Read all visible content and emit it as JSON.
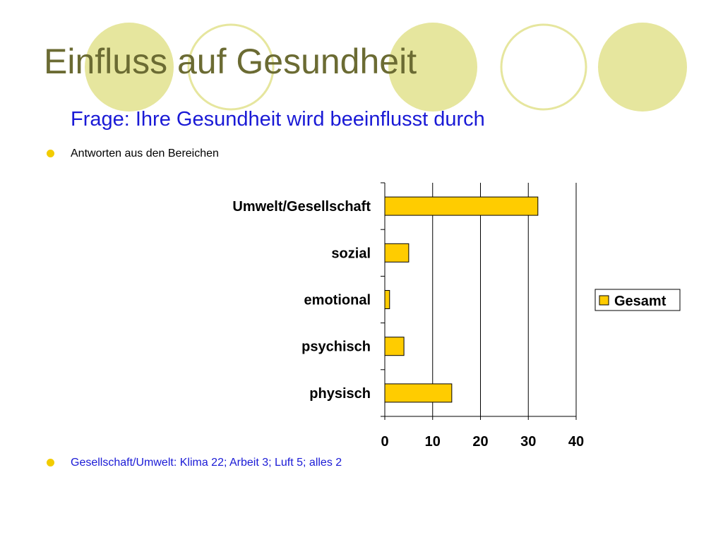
{
  "slide": {
    "title": "Einfluss auf Gesundheit",
    "subtitle": "Frage: Ihre Gesundheit wird beeinflusst durch",
    "bullets": [
      "Antworten aus den Bereichen",
      "Gesellschaft/Umwelt: Klima 22; Arbeit 3; Luft 5; alles 2"
    ],
    "colors": {
      "title": "#6b6b33",
      "subtitle": "#1a1ad6",
      "bullet": "#f2cc00",
      "decor_circle": "#e6e69e",
      "bar_fill": "#ffcc00"
    }
  },
  "chart_data": {
    "type": "bar",
    "orientation": "horizontal",
    "categories": [
      "Umwelt/Gesellschaft",
      "sozial",
      "emotional",
      "psychisch",
      "physisch"
    ],
    "series": [
      {
        "name": "Gesamt",
        "values": [
          32,
          5,
          1,
          4,
          14
        ]
      }
    ],
    "xlim": [
      0,
      40
    ],
    "xticks": [
      0,
      10,
      20,
      30,
      40
    ],
    "grid": "vertical",
    "legend": "right"
  }
}
